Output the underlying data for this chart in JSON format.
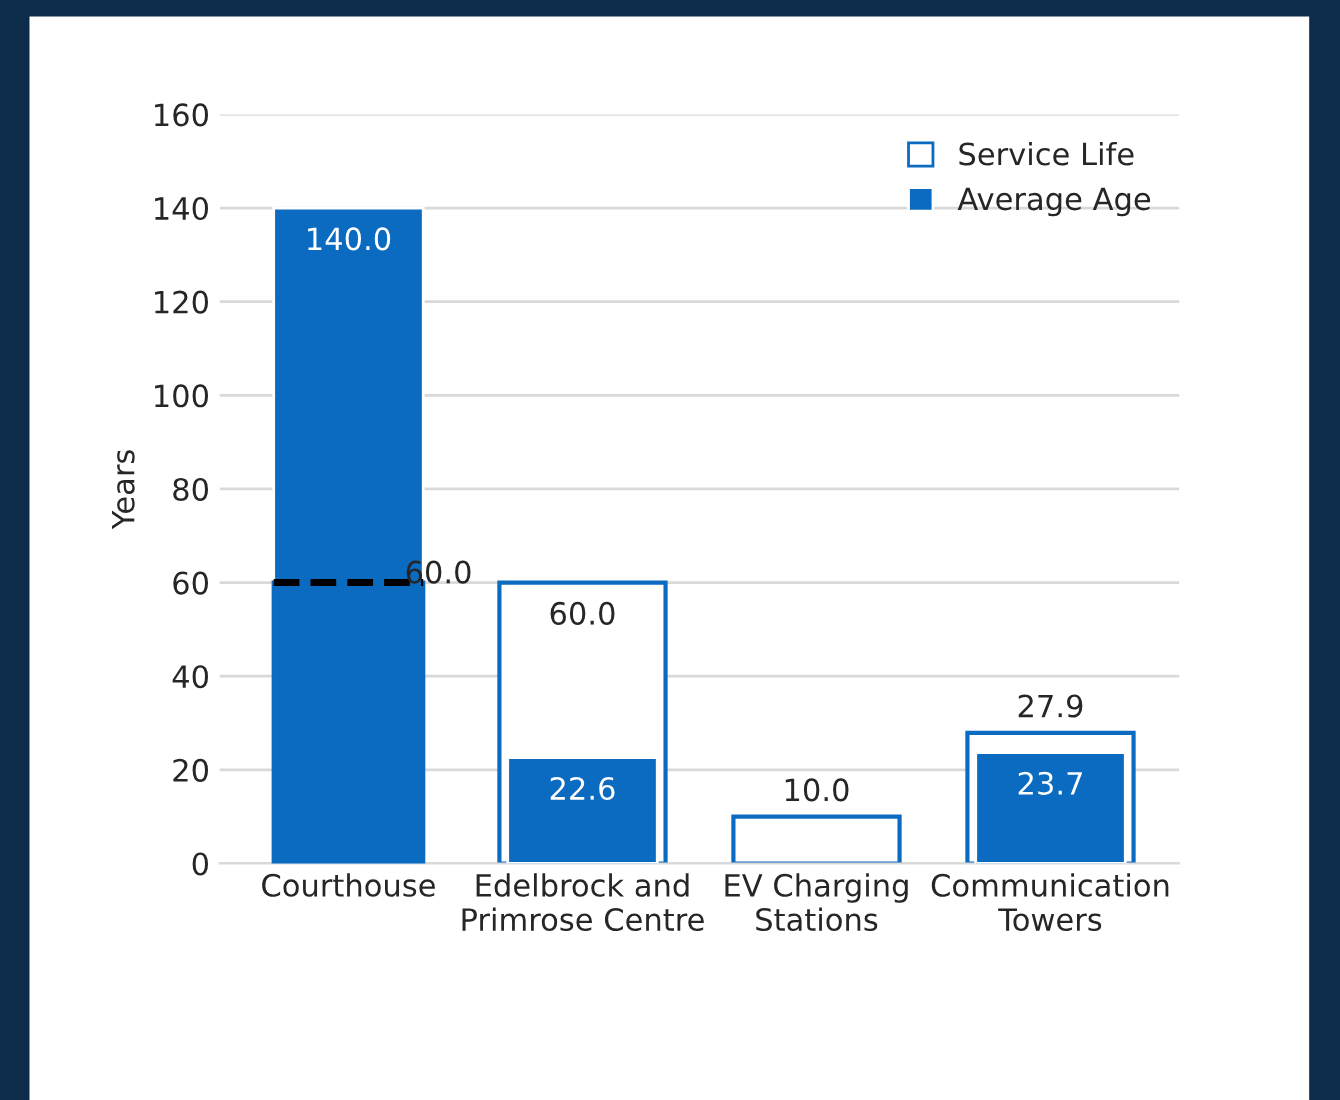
{
  "chart_data": {
    "type": "bar",
    "ylabel": "Years",
    "categories": [
      "Courthouse",
      "Edelbrock and\nPrimrose Centre",
      "EV Charging\nStations",
      "Communication\nTowers"
    ],
    "series": [
      {
        "name": "Service Life",
        "color": "#0b6bc0",
        "values": [
          60,
          60,
          10,
          27.9
        ],
        "value_labels": [
          "60.0",
          "60.0",
          "10.0",
          "27.9"
        ]
      },
      {
        "name": "Average Age",
        "color": "#0b6bc0",
        "values": [
          140,
          22.6,
          null,
          23.7
        ],
        "value_labels": [
          "140.0",
          "22.6",
          null,
          "23.7"
        ]
      }
    ],
    "ylim": [
      0,
      160
    ],
    "yticks": [
      0,
      20,
      40,
      60,
      80,
      100,
      120,
      140,
      160
    ],
    "grid": "y",
    "legend": "top right"
  }
}
